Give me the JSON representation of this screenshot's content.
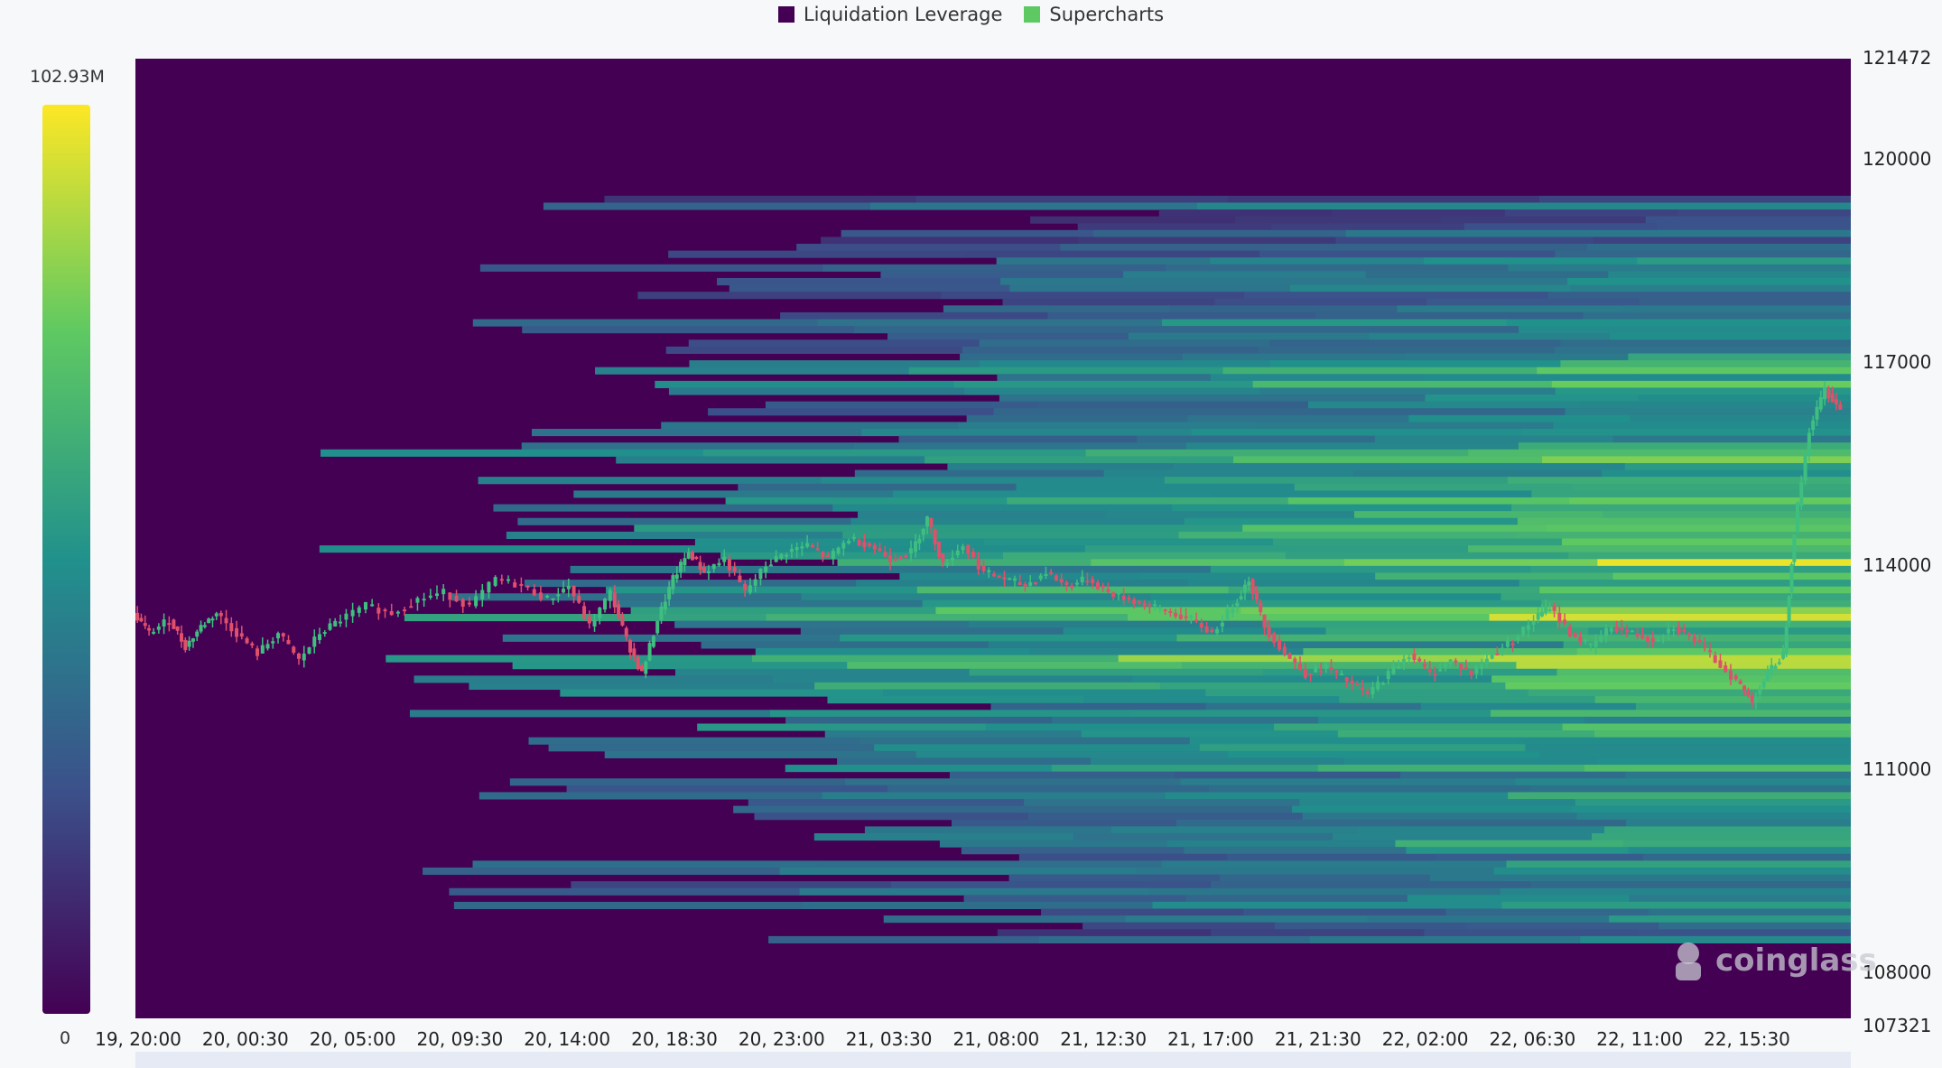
{
  "chart_data": {
    "type": "heatmap",
    "legend": [
      {
        "label": "Liquidation Leverage",
        "color": "#440154"
      },
      {
        "label": "Supercharts",
        "color": "#5ec962"
      }
    ],
    "colorbar": {
      "max_label": "102.93M",
      "min_label": "0",
      "min": 0,
      "max": 102930000
    },
    "y_axis": {
      "range": [
        107321,
        121472
      ],
      "ticks": [
        "121472",
        "120000",
        "117000",
        "114000",
        "111000",
        "108000",
        "107321"
      ]
    },
    "x_axis": {
      "ticks": [
        "19, 20:00",
        "20, 00:30",
        "20, 05:00",
        "20, 09:30",
        "20, 14:00",
        "20, 18:30",
        "20, 23:00",
        "21, 03:30",
        "21, 08:00",
        "21, 12:30",
        "21, 17:00",
        "21, 21:30",
        "22, 02:00",
        "22, 06:30",
        "22, 11:00",
        "22, 15:30"
      ]
    },
    "price_path": [
      [
        0,
        113300
      ],
      [
        0.3,
        113000
      ],
      [
        0.7,
        113200
      ],
      [
        1.0,
        112800
      ],
      [
        1.3,
        113100
      ],
      [
        1.6,
        113300
      ],
      [
        2.0,
        113000
      ],
      [
        2.4,
        112700
      ],
      [
        2.8,
        113000
      ],
      [
        3.2,
        112600
      ],
      [
        3.6,
        113000
      ],
      [
        4.0,
        113200
      ],
      [
        4.5,
        113400
      ],
      [
        5.0,
        113300
      ],
      [
        5.5,
        113500
      ],
      [
        6.0,
        113600
      ],
      [
        6.5,
        113400
      ],
      [
        7.0,
        113800
      ],
      [
        7.5,
        113700
      ],
      [
        8.0,
        113500
      ],
      [
        8.4,
        113700
      ],
      [
        8.8,
        113100
      ],
      [
        9.2,
        113600
      ],
      [
        9.5,
        112900
      ],
      [
        9.8,
        112400
      ],
      [
        10.1,
        113200
      ],
      [
        10.4,
        113800
      ],
      [
        10.7,
        114200
      ],
      [
        11.0,
        113900
      ],
      [
        11.4,
        114100
      ],
      [
        11.8,
        113600
      ],
      [
        12.2,
        114000
      ],
      [
        12.6,
        114200
      ],
      [
        13.0,
        114300
      ],
      [
        13.4,
        114100
      ],
      [
        13.8,
        114400
      ],
      [
        14.2,
        114300
      ],
      [
        14.6,
        114100
      ],
      [
        15.0,
        114200
      ],
      [
        15.3,
        114700
      ],
      [
        15.6,
        114000
      ],
      [
        16.0,
        114300
      ],
      [
        16.4,
        113900
      ],
      [
        16.8,
        113800
      ],
      [
        17.2,
        113700
      ],
      [
        17.6,
        113900
      ],
      [
        18.0,
        113700
      ],
      [
        18.4,
        113800
      ],
      [
        18.8,
        113600
      ],
      [
        19.2,
        113500
      ],
      [
        19.6,
        113400
      ],
      [
        20.0,
        113300
      ],
      [
        20.4,
        113200
      ],
      [
        20.8,
        113000
      ],
      [
        21.2,
        113400
      ],
      [
        21.5,
        113800
      ],
      [
        21.8,
        113100
      ],
      [
        22.2,
        112700
      ],
      [
        22.6,
        112400
      ],
      [
        23.0,
        112500
      ],
      [
        23.4,
        112300
      ],
      [
        23.8,
        112100
      ],
      [
        24.2,
        112400
      ],
      [
        24.6,
        112700
      ],
      [
        25.0,
        112400
      ],
      [
        25.4,
        112600
      ],
      [
        25.8,
        112400
      ],
      [
        26.2,
        112700
      ],
      [
        26.6,
        112900
      ],
      [
        27.0,
        113200
      ],
      [
        27.3,
        113400
      ],
      [
        27.7,
        113000
      ],
      [
        28.1,
        112800
      ],
      [
        28.5,
        113100
      ],
      [
        28.9,
        113000
      ],
      [
        29.3,
        112900
      ],
      [
        29.7,
        113100
      ],
      [
        30.1,
        112900
      ],
      [
        30.5,
        112600
      ],
      [
        30.9,
        112300
      ],
      [
        31.2,
        112000
      ],
      [
        31.5,
        112400
      ],
      [
        31.8,
        112700
      ],
      [
        32.0,
        114500
      ],
      [
        32.3,
        116000
      ],
      [
        32.6,
        116600
      ],
      [
        32.9,
        116300
      ]
    ]
  }
}
